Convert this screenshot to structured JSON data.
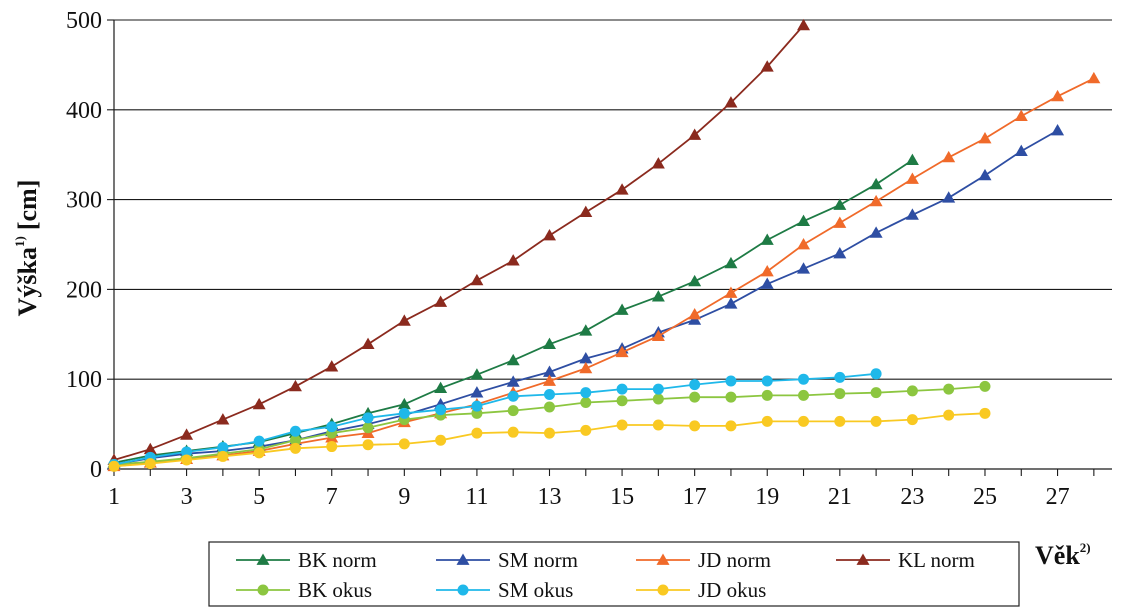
{
  "chart_data": {
    "type": "line",
    "ylabel": "Výška",
    "ylabel_sup": "1)",
    "ylabel_unit": "[cm]",
    "xlabel": "Věk",
    "xlabel_sup": "2)",
    "xlim": [
      1,
      28
    ],
    "ylim": [
      0,
      500
    ],
    "x_ticks": [
      "1",
      "3",
      "5",
      "7",
      "9",
      "11",
      "13",
      "15",
      "17",
      "19",
      "21",
      "23",
      "25",
      "27"
    ],
    "y_ticks": [
      "0",
      "100",
      "200",
      "300",
      "400",
      "500"
    ],
    "grid": "horizontal",
    "legend_position": "bottom",
    "series": [
      {
        "name": "BK norm",
        "marker": "triangle",
        "color": "#1e7b45",
        "x": [
          1,
          2,
          3,
          4,
          5,
          6,
          7,
          8,
          9,
          10,
          11,
          12,
          13,
          14,
          15,
          16,
          17,
          18,
          19,
          20,
          21,
          22,
          23
        ],
        "y": [
          7,
          15,
          20,
          25,
          30,
          40,
          50,
          62,
          72,
          90,
          105,
          121,
          139,
          154,
          177,
          192,
          209,
          229,
          255,
          276,
          294,
          317,
          344
        ]
      },
      {
        "name": "SM norm",
        "marker": "triangle",
        "color": "#2e4ea3",
        "x": [
          1,
          2,
          3,
          4,
          5,
          6,
          7,
          8,
          9,
          10,
          11,
          12,
          13,
          14,
          15,
          16,
          17,
          18,
          19,
          20,
          21,
          22,
          23,
          24,
          25,
          26,
          27
        ],
        "y": [
          5,
          12,
          17,
          20,
          25,
          32,
          42,
          50,
          60,
          72,
          85,
          97,
          108,
          123,
          134,
          152,
          166,
          184,
          206,
          223,
          240,
          263,
          283,
          302,
          327,
          354,
          377
        ]
      },
      {
        "name": "JD norm",
        "marker": "triangle",
        "color": "#f06a2a",
        "x": [
          1,
          2,
          3,
          4,
          5,
          6,
          7,
          8,
          9,
          10,
          11,
          12,
          13,
          14,
          15,
          16,
          17,
          18,
          19,
          20,
          21,
          22,
          23,
          24,
          25,
          26,
          27,
          28
        ],
        "y": [
          3,
          7,
          11,
          15,
          20,
          28,
          35,
          40,
          52,
          62,
          72,
          85,
          98,
          112,
          130,
          148,
          172,
          196,
          220,
          250,
          274,
          298,
          323,
          347,
          368,
          393,
          415,
          435
        ]
      },
      {
        "name": "KL norm",
        "marker": "triangle",
        "color": "#8b2a1e",
        "x": [
          1,
          2,
          3,
          4,
          5,
          6,
          7,
          8,
          9,
          10,
          11,
          12,
          13,
          14,
          15,
          16,
          17,
          18,
          19,
          20
        ],
        "y": [
          10,
          22,
          38,
          55,
          72,
          92,
          114,
          139,
          165,
          186,
          210,
          232,
          260,
          286,
          311,
          340,
          372,
          408,
          448,
          494
        ]
      },
      {
        "name": "BK okus",
        "marker": "circle",
        "color": "#8cc640",
        "x": [
          1,
          2,
          3,
          4,
          5,
          6,
          7,
          8,
          9,
          10,
          11,
          12,
          13,
          14,
          15,
          16,
          17,
          18,
          19,
          20,
          21,
          22,
          23,
          24,
          25
        ],
        "y": [
          5,
          8,
          12,
          17,
          22,
          32,
          40,
          46,
          55,
          60,
          62,
          65,
          69,
          74,
          76,
          78,
          80,
          80,
          82,
          82,
          84,
          85,
          87,
          89,
          92
        ]
      },
      {
        "name": "SM okus",
        "marker": "circle",
        "color": "#1fb8ea",
        "x": [
          1,
          2,
          3,
          4,
          5,
          6,
          7,
          8,
          9,
          10,
          11,
          12,
          13,
          14,
          15,
          16,
          17,
          18,
          19,
          20,
          21,
          22
        ],
        "y": [
          5,
          13,
          19,
          24,
          31,
          42,
          47,
          57,
          62,
          66,
          70,
          81,
          83,
          85,
          89,
          89,
          94,
          98,
          98,
          100,
          102,
          106
        ]
      },
      {
        "name": "JD okus",
        "marker": "circle",
        "color": "#f9c922",
        "x": [
          1,
          2,
          3,
          4,
          5,
          6,
          7,
          8,
          9,
          10,
          11,
          12,
          13,
          14,
          15,
          16,
          17,
          18,
          19,
          20,
          21,
          22,
          23,
          24,
          25
        ],
        "y": [
          3,
          6,
          10,
          14,
          18,
          23,
          25,
          27,
          28,
          32,
          40,
          41,
          40,
          43,
          49,
          49,
          48,
          48,
          53,
          53,
          53,
          53,
          55,
          60,
          62
        ]
      }
    ]
  }
}
